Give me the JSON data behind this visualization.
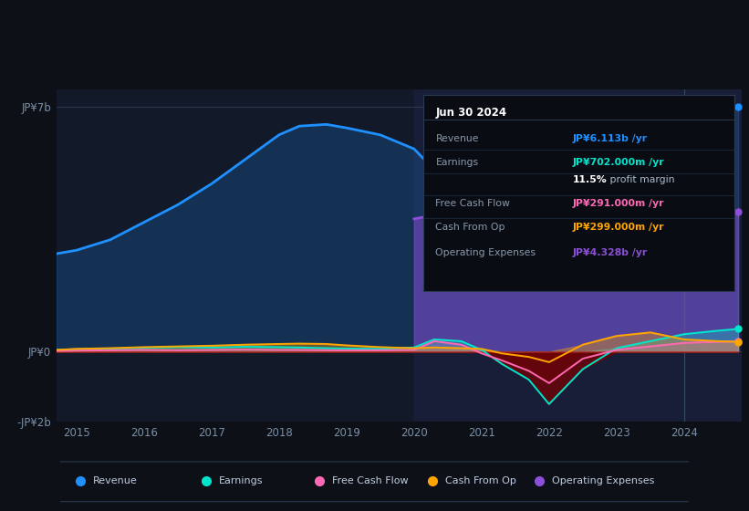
{
  "bg_color": "#0d1117",
  "plot_bg_color": "#121928",
  "years": [
    2014.7,
    2015.0,
    2015.5,
    2016.0,
    2016.5,
    2017.0,
    2017.5,
    2018.0,
    2018.3,
    2018.7,
    2019.0,
    2019.5,
    2020.0,
    2020.3,
    2020.7,
    2021.0,
    2021.3,
    2021.7,
    2022.0,
    2022.5,
    2023.0,
    2023.5,
    2024.0,
    2024.5,
    2024.8
  ],
  "revenue": [
    2.8,
    2.9,
    3.2,
    3.7,
    4.2,
    4.8,
    5.5,
    6.2,
    6.45,
    6.5,
    6.4,
    6.2,
    5.8,
    5.2,
    4.5,
    4.2,
    4.4,
    4.7,
    5.0,
    5.4,
    5.8,
    6.1,
    6.4,
    6.8,
    7.0
  ],
  "earnings": [
    0.05,
    0.07,
    0.09,
    0.11,
    0.13,
    0.12,
    0.14,
    0.13,
    0.12,
    0.1,
    0.09,
    0.08,
    0.12,
    0.35,
    0.3,
    0.05,
    -0.35,
    -0.8,
    -1.5,
    -0.5,
    0.1,
    0.3,
    0.5,
    0.6,
    0.65
  ],
  "free_cash_flow": [
    0.02,
    0.03,
    0.04,
    0.05,
    0.04,
    0.05,
    0.06,
    0.05,
    0.05,
    0.04,
    0.04,
    0.04,
    0.05,
    0.3,
    0.2,
    -0.05,
    -0.25,
    -0.55,
    -0.9,
    -0.2,
    0.05,
    0.15,
    0.25,
    0.28,
    0.3
  ],
  "cash_from_op": [
    0.05,
    0.08,
    0.1,
    0.13,
    0.15,
    0.17,
    0.2,
    0.22,
    0.23,
    0.22,
    0.18,
    0.13,
    0.1,
    0.12,
    0.1,
    0.08,
    -0.05,
    -0.15,
    -0.3,
    0.2,
    0.45,
    0.55,
    0.35,
    0.3,
    0.28
  ],
  "operating_expenses": [
    0.0,
    0.0,
    0.0,
    0.0,
    0.0,
    0.0,
    0.0,
    0.0,
    0.0,
    0.0,
    0.0,
    0.0,
    3.8,
    3.9,
    3.85,
    3.7,
    3.5,
    3.3,
    3.1,
    3.0,
    3.1,
    3.3,
    3.5,
    3.8,
    4.0
  ],
  "revenue_color": "#1e90ff",
  "earnings_color": "#00e5cc",
  "free_cash_flow_color": "#ff69b4",
  "cash_from_op_color": "#ffa500",
  "operating_expenses_color": "#8b4fd8",
  "y_min": -2.0,
  "y_max": 7.5,
  "x_min": 2014.7,
  "x_max": 2024.85,
  "ytick_labels": [
    "JP¥7b",
    "JP¥0",
    "-JP¥2b"
  ],
  "ytick_positions": [
    7.0,
    0.0,
    -2.0
  ],
  "xtick_labels": [
    "2015",
    "2016",
    "2017",
    "2018",
    "2019",
    "2020",
    "2021",
    "2022",
    "2023",
    "2024"
  ],
  "xtick_positions": [
    2015,
    2016,
    2017,
    2018,
    2019,
    2020,
    2021,
    2022,
    2023,
    2024
  ],
  "shaded_region_start": 2020.0,
  "shaded_region_color": "#1a1f3a",
  "vline_x": 2024.0,
  "tooltip_date": "Jun 30 2024",
  "tooltip_rows": [
    {
      "label": "Revenue",
      "value": "JP¥6.113b /yr",
      "value_color": "#1e90ff"
    },
    {
      "label": "Earnings",
      "value": "JP¥702.000m /yr",
      "value_color": "#00e5cc"
    },
    {
      "label": "",
      "value": "",
      "value_color": "#ffffff",
      "profit_margin": true
    },
    {
      "label": "Free Cash Flow",
      "value": "JP¥291.000m /yr",
      "value_color": "#ff69b4"
    },
    {
      "label": "Cash From Op",
      "value": "JP¥299.000m /yr",
      "value_color": "#ffa500"
    },
    {
      "label": "Operating Expenses",
      "value": "JP¥4.328b /yr",
      "value_color": "#8b4fd8"
    }
  ],
  "profit_margin_text": "11.5%",
  "profit_margin_suffix": " profit margin",
  "legend_items": [
    {
      "label": "Revenue",
      "color": "#1e90ff"
    },
    {
      "label": "Earnings",
      "color": "#00e5cc"
    },
    {
      "label": "Free Cash Flow",
      "color": "#ff69b4"
    },
    {
      "label": "Cash From Op",
      "color": "#ffa500"
    },
    {
      "label": "Operating Expenses",
      "color": "#8b4fd8"
    }
  ]
}
